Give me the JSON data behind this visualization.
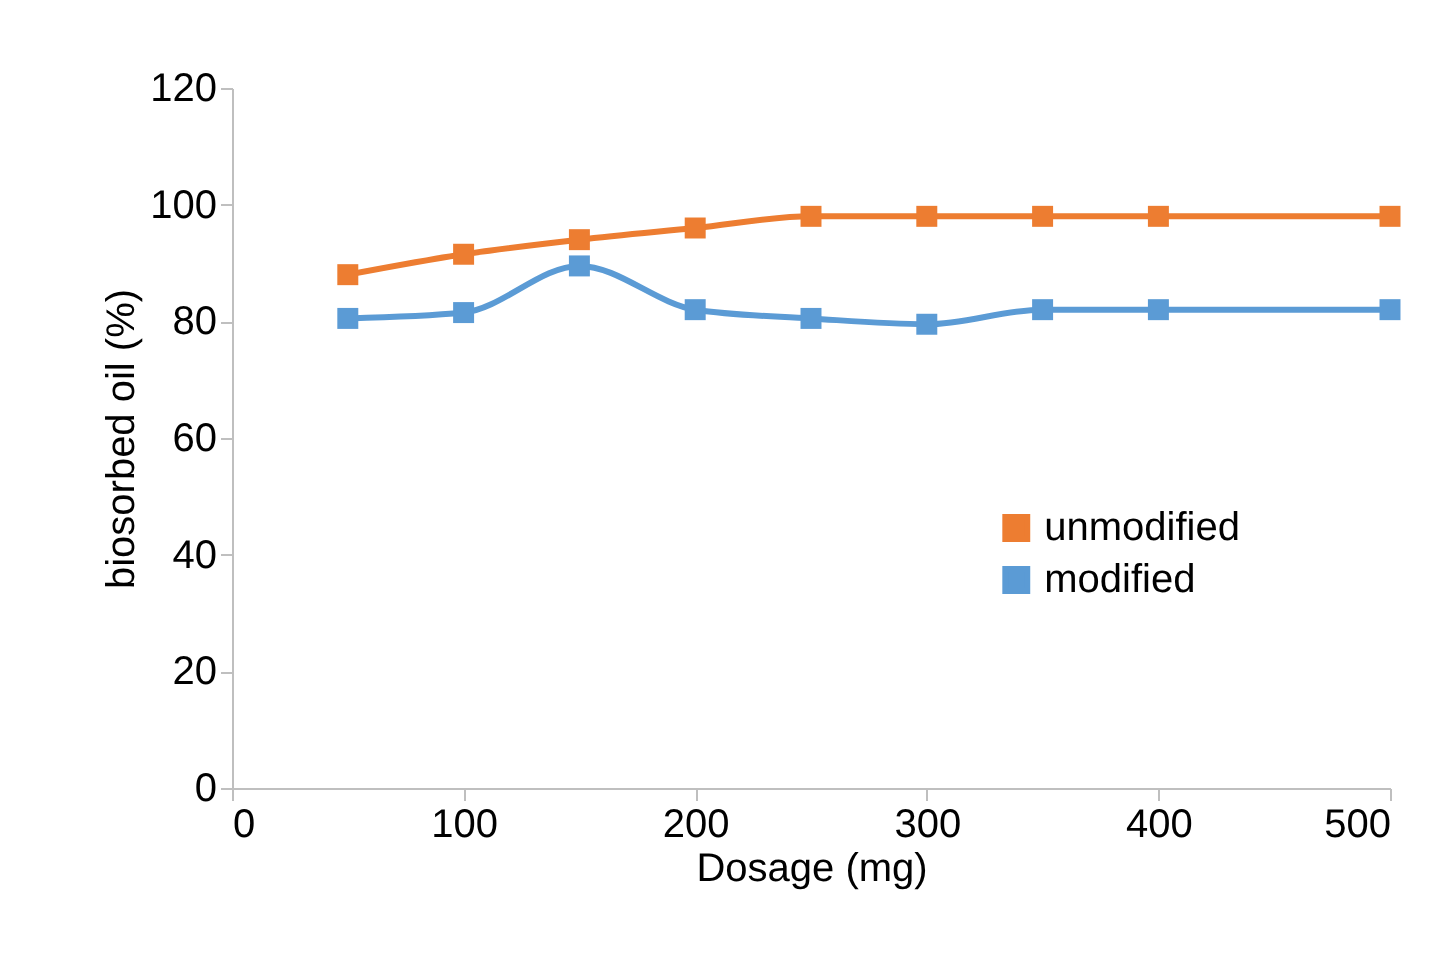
{
  "chart_data": {
    "type": "line",
    "xlabel": "Dosage (mg)",
    "ylabel": "biosorbed oil (%)",
    "x": [
      50,
      100,
      150,
      200,
      250,
      300,
      350,
      400,
      500
    ],
    "series": [
      {
        "name": "unmodified",
        "color": "#ed7d31",
        "values": [
          88,
          91.5,
          94,
          96,
          98,
          98,
          98,
          98,
          98
        ]
      },
      {
        "name": "modified",
        "color": "#5b9bd5",
        "values": [
          80.5,
          81.5,
          89.5,
          82,
          80.5,
          79.5,
          82,
          82,
          82
        ]
      }
    ],
    "xlim": [
      0,
      500
    ],
    "xticks": [
      0,
      100,
      200,
      300,
      400,
      500
    ],
    "ylim": [
      0,
      120
    ],
    "yticks": [
      0,
      20,
      40,
      60,
      80,
      100,
      120
    ],
    "grid": false,
    "legend": "right",
    "marker": "square",
    "line_style": "solid"
  }
}
